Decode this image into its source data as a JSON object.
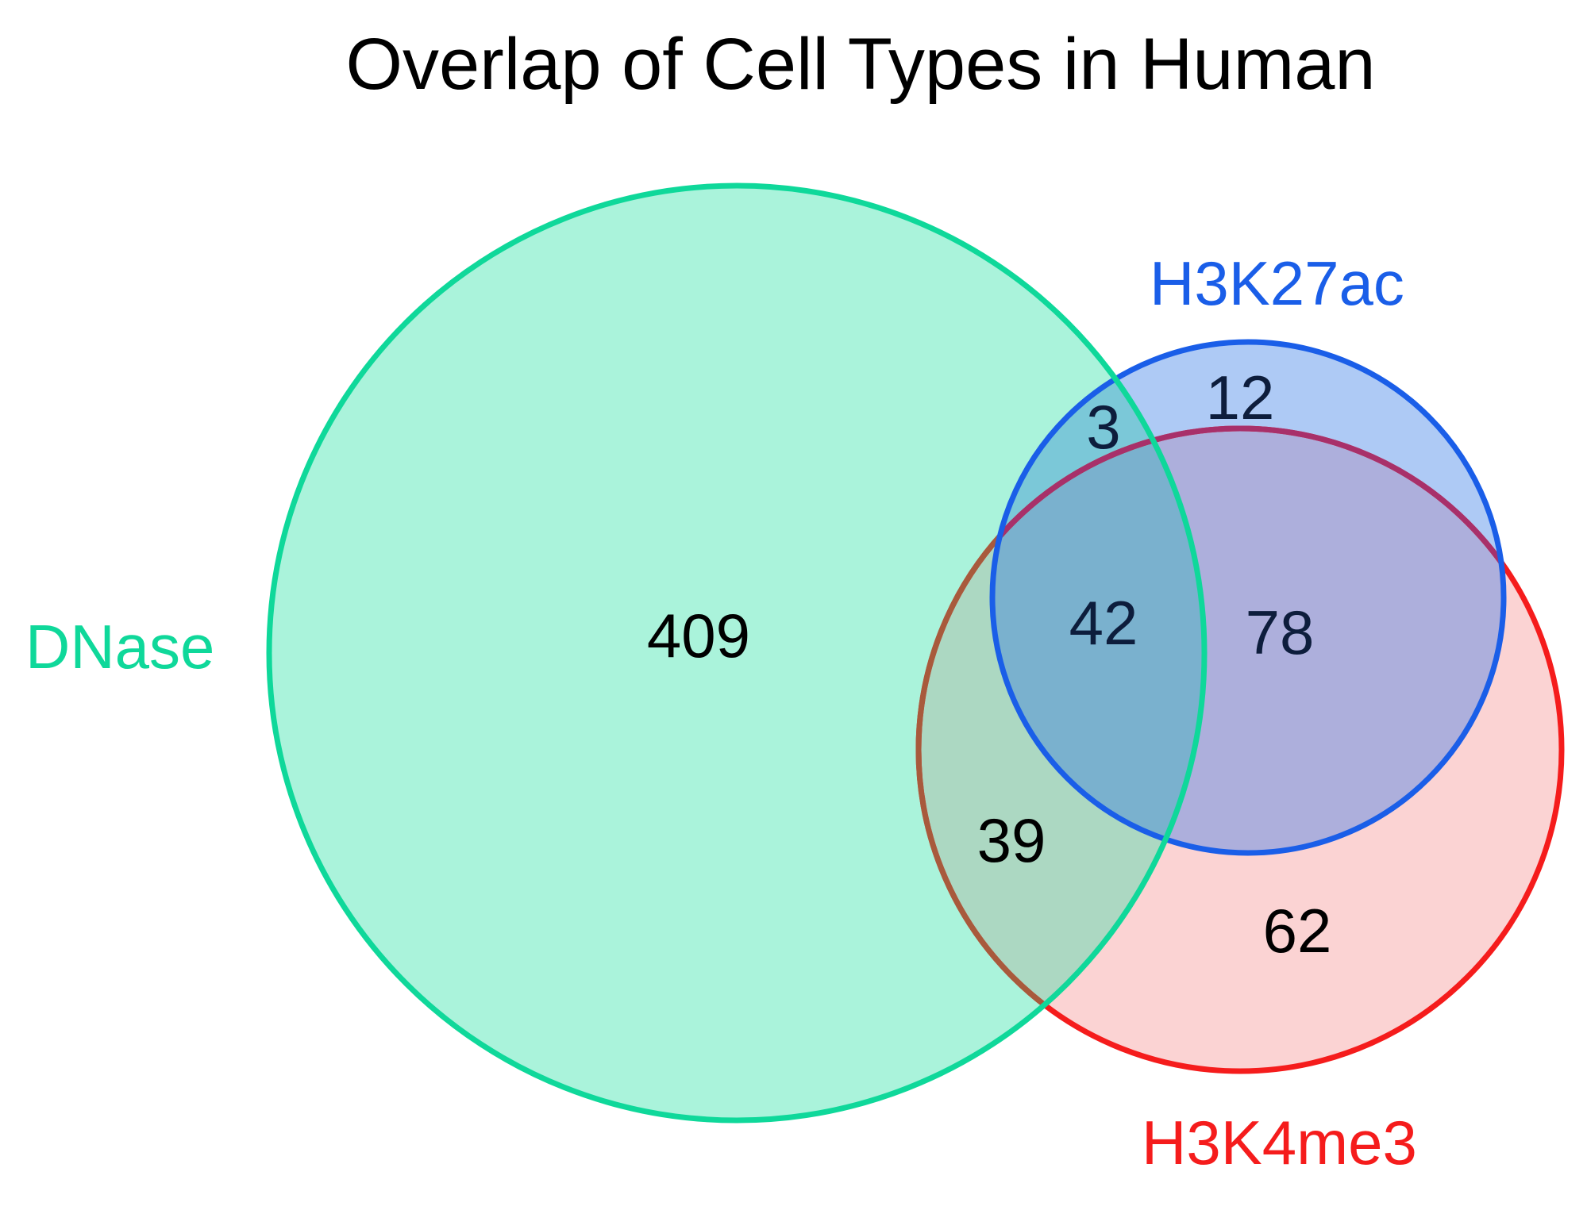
{
  "title": "Overlap of Cell Types in Human",
  "sets": [
    {
      "key": "dnase",
      "label": "DNase",
      "color": "#0fd89a",
      "fill": "#aaf3db"
    },
    {
      "key": "h3k27ac",
      "label": "H3K27ac",
      "color": "#1a5ee8",
      "fill": "#aecaf5"
    },
    {
      "key": "h3k4me3",
      "label": "H3K4me3",
      "color": "#f51c1c",
      "fill": "#fbd3d3"
    }
  ],
  "regions": {
    "dnase_only": "409",
    "h3k27ac_only": "12",
    "dnase_h3k27ac": "3",
    "all_three": "42",
    "h3k27ac_h3k4me3": "78",
    "dnase_h3k4me3": "39",
    "h3k4me3_only": "62"
  }
}
